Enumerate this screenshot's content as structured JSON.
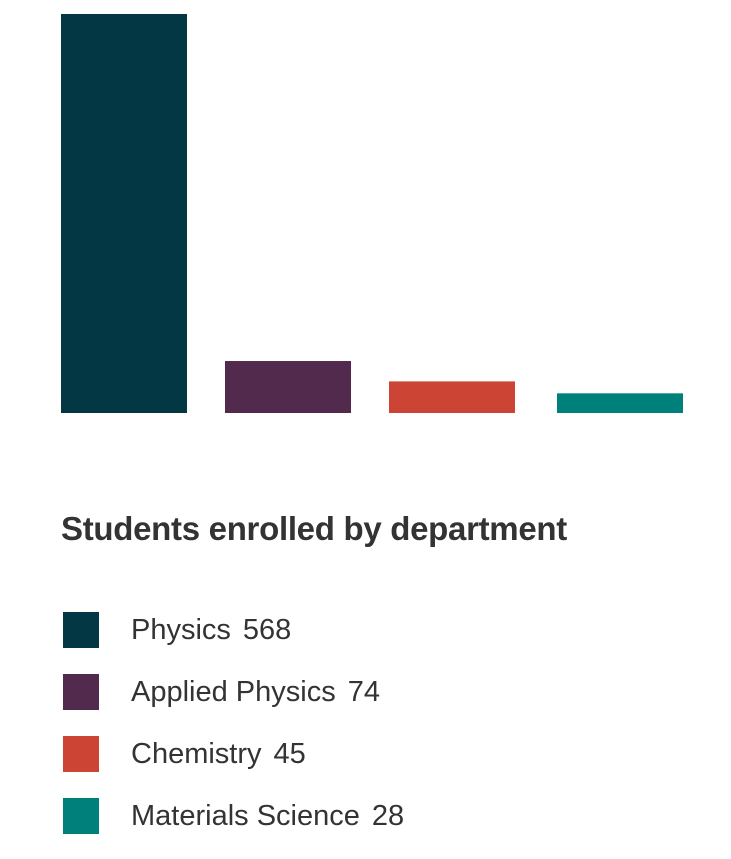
{
  "chart_data": {
    "type": "bar",
    "title": "Students enrolled by department",
    "categories": [
      "Physics",
      "Applied Physics",
      "Chemistry",
      "Materials Science"
    ],
    "values": [
      568,
      74,
      45,
      28
    ],
    "colors": [
      "#033744",
      "#522A4E",
      "#CC4433",
      "#00807A"
    ],
    "grid": false,
    "axes_visible": false,
    "legend_position": "bottom",
    "legend": [
      {
        "label": "Physics",
        "value": "568",
        "color": "#033744"
      },
      {
        "label": "Applied Physics",
        "value": "74",
        "color": "#522A4E"
      },
      {
        "label": "Chemistry",
        "value": "45",
        "color": "#CC4433"
      },
      {
        "label": "Materials Science",
        "value": "28",
        "color": "#00807A"
      }
    ]
  }
}
